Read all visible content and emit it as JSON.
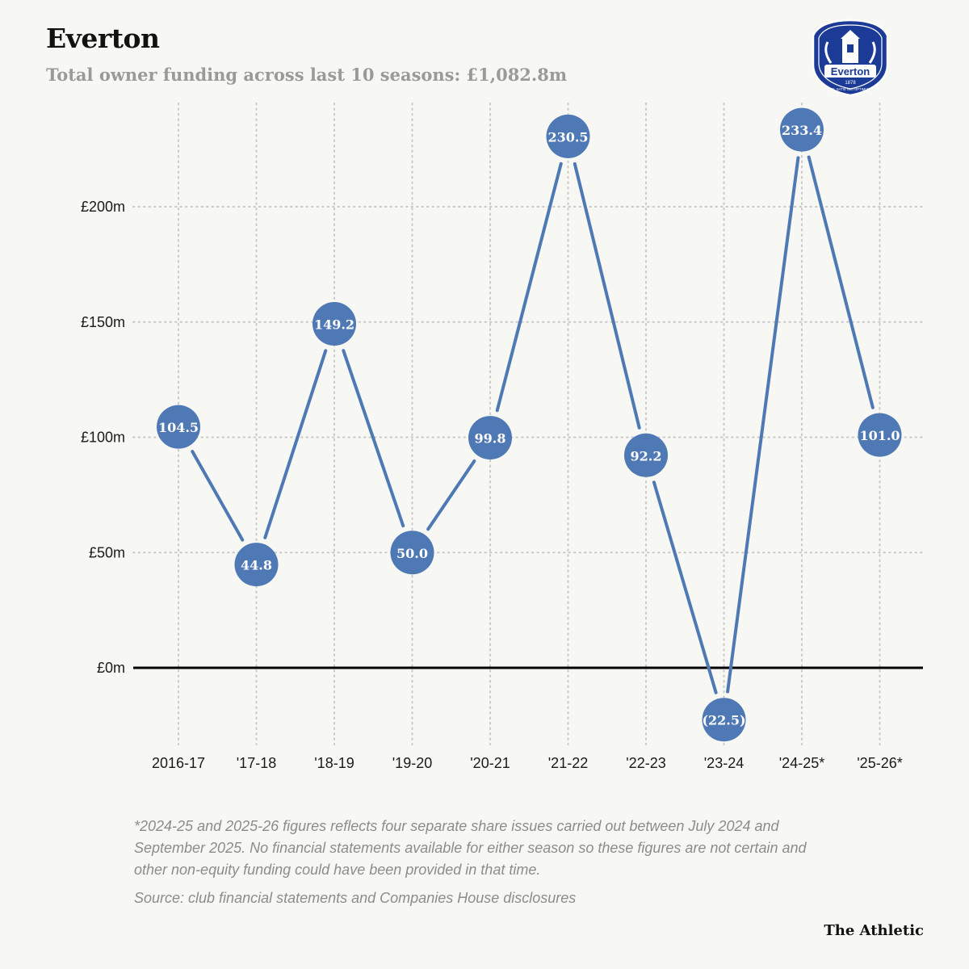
{
  "header": {
    "title": "Everton",
    "subtitle": "Total owner funding across last 10 seasons: £1,082.8m"
  },
  "crest": {
    "club_name": "Everton",
    "founded": "1878",
    "motto": "NIL SATIS NISI OPTIMUM"
  },
  "chart_data": {
    "type": "line",
    "title": "Everton",
    "subtitle": "Total owner funding across last 10 seasons: £1,082.8m",
    "xlabel": "",
    "ylabel": "",
    "categories": [
      "2016-17",
      "'17-18",
      "'18-19",
      "'19-20",
      "'20-21",
      "'21-22",
      "'22-23",
      "'23-24",
      "'24-25*",
      "'25-26*"
    ],
    "series": [
      {
        "name": "Owner funding (£m)",
        "values": [
          104.5,
          44.8,
          149.2,
          50.0,
          99.8,
          230.5,
          92.2,
          -22.5,
          233.4,
          101.0
        ],
        "labels": [
          "104.5",
          "44.8",
          "149.2",
          "50.0",
          "99.8",
          "230.5",
          "92.2",
          "(22.5)",
          "233.4",
          "101.0"
        ]
      }
    ],
    "yticks": [
      0,
      50,
      100,
      150,
      200
    ],
    "ytick_labels": [
      "£0m",
      "£50m",
      "£100m",
      "£150m",
      "£200m"
    ],
    "ylim": [
      -25,
      235
    ],
    "grid": true,
    "legend": "none",
    "colors": {
      "marker": "#4f79b5",
      "line": "#4f79b5",
      "zero_line": "#000000",
      "grid": "#c8c8c8"
    }
  },
  "notes": {
    "footnote": "*2024-25 and 2025-26 figures reflects four separate share issues carried out between July 2024 and September 2025. No financial statements available for either season so these figures are not certain and other non-equity funding could have been provided in that time.",
    "source": "Source: club financial statements and Companies House disclosures",
    "brand": "The Athletic"
  }
}
